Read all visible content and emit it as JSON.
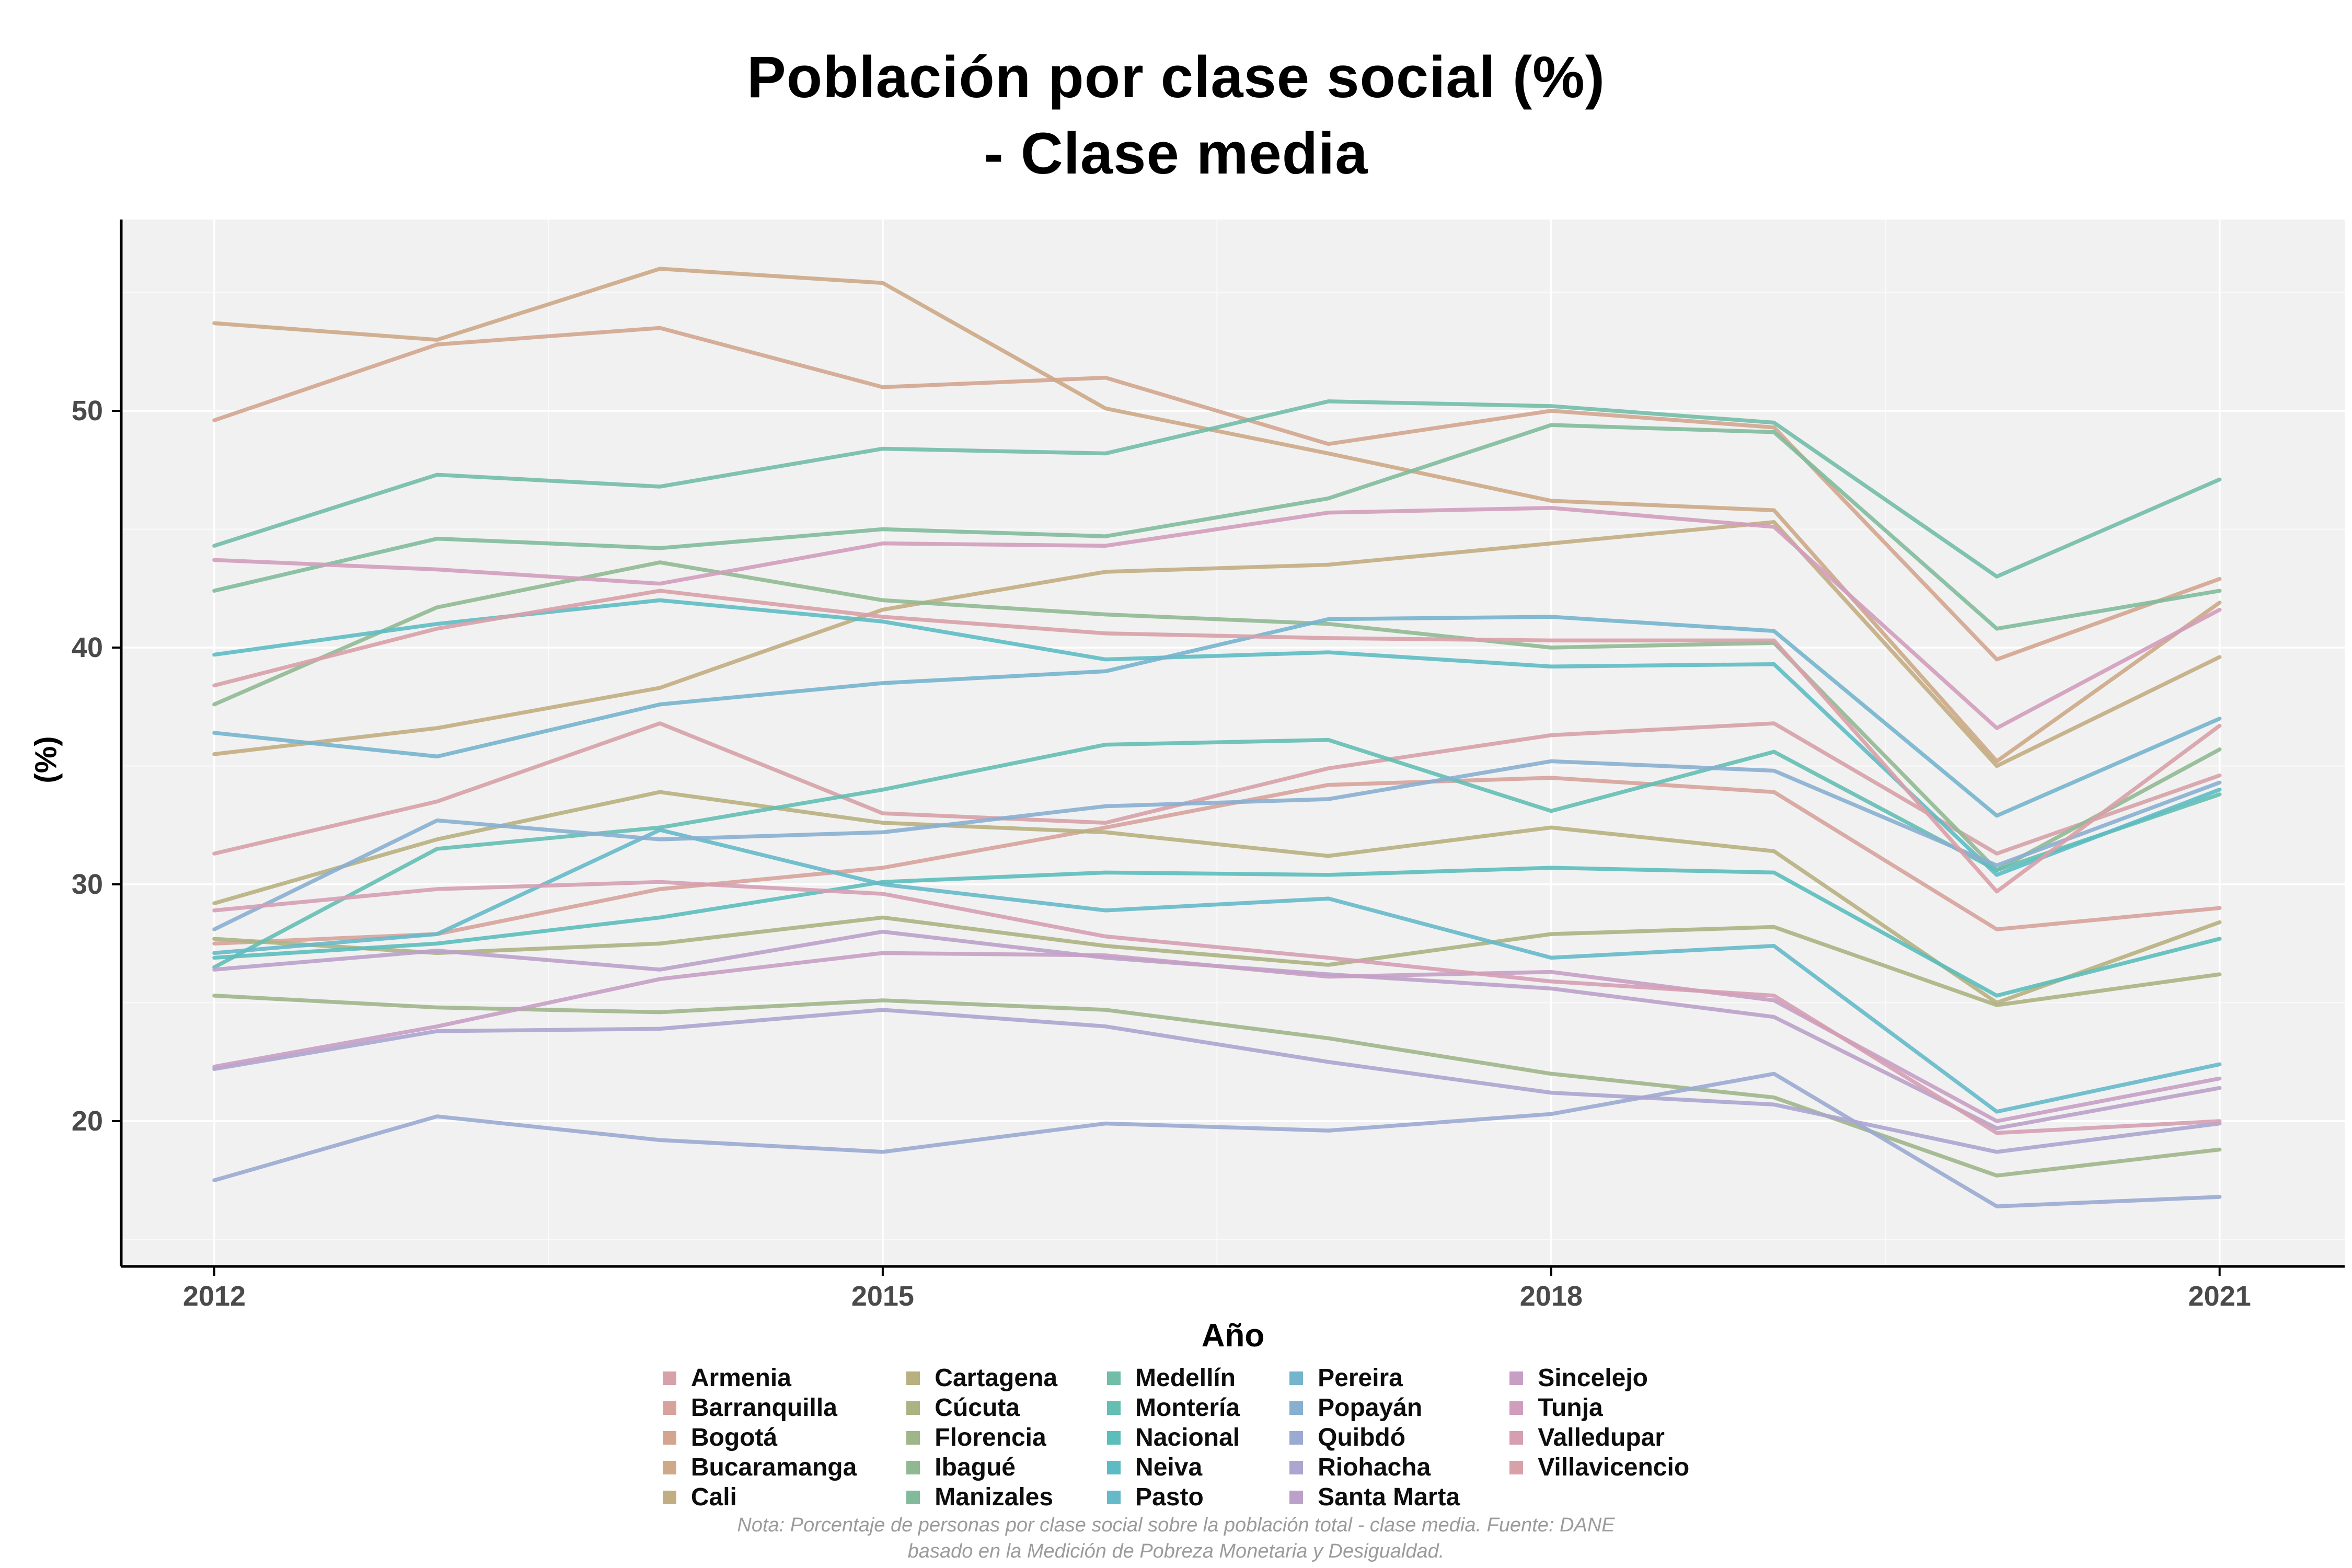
{
  "title": {
    "line1": "Población por clase social (%)",
    "line2": "- Clase media"
  },
  "note": {
    "line1": "Nota: Porcentaje de personas por clase social sobre la población total - clase media. Fuente: DANE",
    "line2": "basado en la Medición de Pobreza Monetaria y Desigualdad."
  },
  "chart_data": {
    "type": "line",
    "title": "Población por clase social (%) - Clase media",
    "xlabel": "Año",
    "ylabel": "(%)",
    "x": [
      2012,
      2013,
      2014,
      2015,
      2016,
      2017,
      2018,
      2019,
      2020,
      2021
    ],
    "x_ticks": [
      2012,
      2015,
      2018,
      2021
    ],
    "y_ticks": [
      20,
      30,
      40,
      50
    ],
    "xlim": [
      2011.55,
      2021.55
    ],
    "ylim": [
      13.9,
      58.2
    ],
    "grid": "white major and minor gridlines on light gray panel",
    "legend_position": "bottom",
    "panel_color": "#f1f1f1",
    "gridline_color": "#ffffff",
    "axis_line_color": "#000000",
    "tick_label_color": "#4a4a4a",
    "series": [
      {
        "name": "Armenia",
        "color": "#d7a1a9",
        "values": [
          31.3,
          33.5,
          36.8,
          33.0,
          32.6,
          34.9,
          36.3,
          36.8,
          31.3,
          34.6
        ]
      },
      {
        "name": "Barranquilla",
        "color": "#d7a29b",
        "values": [
          27.5,
          27.9,
          29.8,
          30.7,
          32.4,
          34.2,
          34.5,
          33.9,
          28.1,
          29.0
        ]
      },
      {
        "name": "Bogotá",
        "color": "#d3a58f",
        "values": [
          49.6,
          52.8,
          53.5,
          51.0,
          51.4,
          48.6,
          50.0,
          49.3,
          39.5,
          42.9
        ]
      },
      {
        "name": "Bucaramanga",
        "color": "#cda987",
        "values": [
          53.7,
          53.0,
          56.0,
          55.4,
          50.1,
          48.2,
          46.2,
          45.8,
          35.2,
          41.9
        ]
      },
      {
        "name": "Cali",
        "color": "#c2ad82",
        "values": [
          35.5,
          36.6,
          38.3,
          41.6,
          43.2,
          43.5,
          44.4,
          45.3,
          35.0,
          39.6
        ]
      },
      {
        "name": "Cartagena",
        "color": "#b8b07f",
        "values": [
          29.2,
          31.9,
          33.9,
          32.6,
          32.2,
          31.2,
          32.4,
          31.4,
          25.0,
          28.4
        ]
      },
      {
        "name": "Cúcuta",
        "color": "#acb382",
        "values": [
          27.7,
          27.1,
          27.5,
          28.6,
          27.4,
          26.6,
          27.9,
          28.2,
          24.9,
          26.2
        ]
      },
      {
        "name": "Florencia",
        "color": "#9fb689",
        "values": [
          25.3,
          24.8,
          24.6,
          25.1,
          24.7,
          23.5,
          22.0,
          21.0,
          17.7,
          18.8
        ]
      },
      {
        "name": "Ibagué",
        "color": "#90b992",
        "values": [
          37.6,
          41.7,
          43.6,
          42.0,
          41.4,
          41.0,
          40.0,
          40.2,
          30.6,
          35.7
        ]
      },
      {
        "name": "Manizales",
        "color": "#81bb9c",
        "values": [
          42.4,
          44.6,
          44.2,
          45.0,
          44.7,
          46.3,
          49.4,
          49.1,
          40.8,
          42.4
        ]
      },
      {
        "name": "Medellín",
        "color": "#72bda7",
        "values": [
          44.3,
          47.3,
          46.8,
          48.4,
          48.2,
          50.4,
          50.2,
          49.5,
          43.0,
          47.1
        ]
      },
      {
        "name": "Montería",
        "color": "#64beb2",
        "values": [
          26.5,
          31.5,
          32.4,
          34.0,
          35.9,
          36.1,
          33.1,
          35.6,
          30.6,
          33.8
        ]
      },
      {
        "name": "Nacional",
        "color": "#5cbebb",
        "values": [
          26.9,
          27.5,
          28.6,
          30.1,
          30.5,
          30.4,
          30.7,
          30.5,
          25.3,
          27.7
        ]
      },
      {
        "name": "Neiva",
        "color": "#5dbcc3",
        "values": [
          39.7,
          41.0,
          42.0,
          41.1,
          39.5,
          39.8,
          39.2,
          39.3,
          30.4,
          34.0
        ]
      },
      {
        "name": "Pasto",
        "color": "#66b9c9",
        "values": [
          27.1,
          27.9,
          32.3,
          30.0,
          28.9,
          29.4,
          26.9,
          27.4,
          20.4,
          22.4
        ]
      },
      {
        "name": "Pereira",
        "color": "#75b4cd",
        "values": [
          36.4,
          35.4,
          37.6,
          38.5,
          39.0,
          41.2,
          41.3,
          40.7,
          32.9,
          37.0
        ]
      },
      {
        "name": "Popayán",
        "color": "#88afd0",
        "values": [
          28.1,
          32.7,
          31.9,
          32.2,
          33.3,
          33.6,
          35.2,
          34.8,
          30.8,
          34.3
        ]
      },
      {
        "name": "Quibdó",
        "color": "#9aaad1",
        "values": [
          17.5,
          20.2,
          19.2,
          18.7,
          19.9,
          19.6,
          20.3,
          22.0,
          16.4,
          16.8
        ]
      },
      {
        "name": "Riohacha",
        "color": "#aba5cf",
        "values": [
          22.2,
          23.8,
          23.9,
          24.7,
          24.0,
          22.5,
          21.2,
          20.7,
          18.7,
          19.9
        ]
      },
      {
        "name": "Santa Marta",
        "color": "#bba1ca",
        "values": [
          26.4,
          27.2,
          26.4,
          28.0,
          26.9,
          26.2,
          25.6,
          24.4,
          19.7,
          21.4
        ]
      },
      {
        "name": "Sincelejo",
        "color": "#c79fc4",
        "values": [
          22.3,
          24.0,
          26.0,
          27.1,
          27.0,
          26.1,
          26.3,
          25.1,
          20.0,
          21.8
        ]
      },
      {
        "name": "Tunja",
        "color": "#d19dbc",
        "values": [
          43.7,
          43.3,
          42.7,
          44.4,
          44.3,
          45.7,
          45.9,
          45.1,
          36.6,
          41.6
        ]
      },
      {
        "name": "Valledupar",
        "color": "#d59eb2",
        "values": [
          28.9,
          29.8,
          30.1,
          29.6,
          27.8,
          26.9,
          25.9,
          25.3,
          19.5,
          20.0
        ]
      },
      {
        "name": "Villavicencio",
        "color": "#d8a0a9",
        "values": [
          38.4,
          40.8,
          42.4,
          41.3,
          40.6,
          40.4,
          40.3,
          40.3,
          29.7,
          36.7
        ]
      }
    ]
  }
}
